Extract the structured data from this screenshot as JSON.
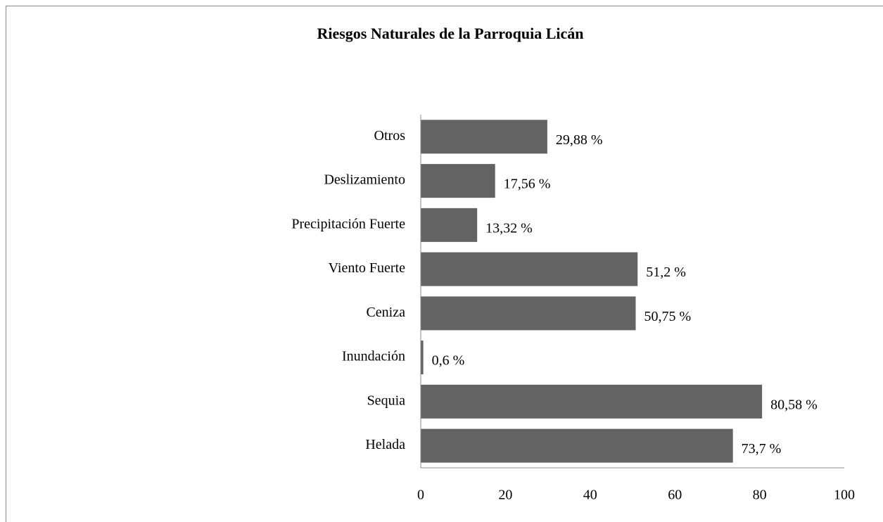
{
  "chart_data": {
    "type": "barh",
    "title": "Riesgos Naturales de la Parroquia Licán",
    "categories": [
      "Otros",
      "Deslizamiento",
      "Precipitación Fuerte",
      "Viento Fuerte",
      "Ceniza",
      "Inundación",
      "Sequia",
      "Helada"
    ],
    "values": [
      29.88,
      17.56,
      13.32,
      51.2,
      50.75,
      0.6,
      80.58,
      73.7
    ],
    "value_labels": [
      "29,88 %",
      "17,56 %",
      "13,32 %",
      "51,2 %",
      "50,75 %",
      "0,6 %",
      "80,58 %",
      "73,7 %"
    ],
    "color": "#636363",
    "xlim": [
      0,
      100
    ],
    "xticks": [
      0,
      20,
      40,
      60,
      80,
      100
    ]
  }
}
